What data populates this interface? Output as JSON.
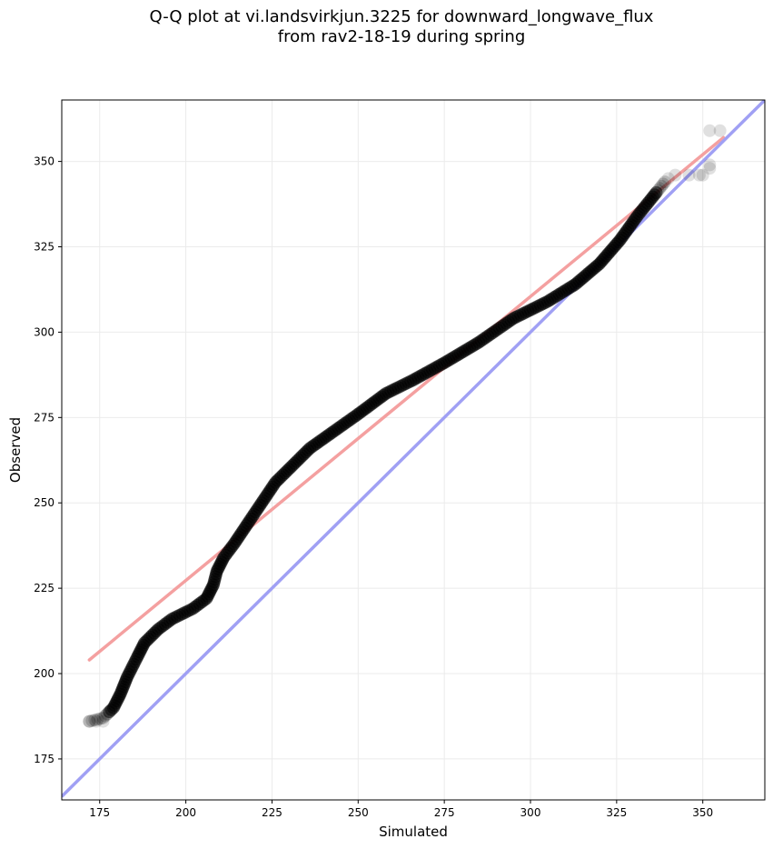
{
  "chart_data": {
    "type": "scatter",
    "title_line1": "Q-Q plot at vi.landsvirkjun.3225 for downward_longwave_flux",
    "title_line2": "from rav2-18-19 during spring",
    "xlabel": "Simulated",
    "ylabel": "Observed",
    "xlim": [
      164,
      368
    ],
    "ylim": [
      163,
      368
    ],
    "xticks": [
      175,
      200,
      225,
      250,
      275,
      300,
      325,
      350
    ],
    "yticks": [
      175,
      200,
      225,
      250,
      275,
      300,
      325,
      350
    ],
    "grid": true,
    "fit_line": {
      "color": "#f4a0a0",
      "x": [
        172,
        356
      ],
      "y": [
        204,
        357
      ]
    },
    "identity_line": {
      "color": "#a0a0f4",
      "x": [
        164,
        368
      ],
      "y": [
        164,
        368
      ]
    },
    "quantile_curve_anchors": [
      [
        172,
        186
      ],
      [
        176,
        187
      ],
      [
        179,
        190
      ],
      [
        181,
        194
      ],
      [
        183,
        199
      ],
      [
        186,
        205
      ],
      [
        188,
        209
      ],
      [
        192,
        213
      ],
      [
        196,
        216
      ],
      [
        202,
        219
      ],
      [
        206,
        222
      ],
      [
        208,
        226
      ],
      [
        209,
        230
      ],
      [
        211,
        234
      ],
      [
        214,
        238
      ],
      [
        218,
        244
      ],
      [
        222,
        250
      ],
      [
        226,
        256
      ],
      [
        231,
        261
      ],
      [
        236,
        266
      ],
      [
        243,
        271
      ],
      [
        250,
        276
      ],
      [
        258,
        282
      ],
      [
        266,
        286
      ],
      [
        275,
        291
      ],
      [
        285,
        297
      ],
      [
        295,
        304
      ],
      [
        305,
        309
      ],
      [
        313,
        314
      ],
      [
        320,
        320
      ],
      [
        326,
        327
      ],
      [
        331,
        334
      ],
      [
        335,
        339
      ],
      [
        339,
        344
      ]
    ],
    "outliers": [
      [
        172,
        186
      ],
      [
        174,
        186
      ],
      [
        176,
        186
      ],
      [
        177,
        188
      ],
      [
        340,
        345
      ],
      [
        342,
        346
      ],
      [
        346,
        346
      ],
      [
        349,
        346
      ],
      [
        350,
        346
      ],
      [
        352,
        348
      ],
      [
        352,
        349
      ],
      [
        352,
        359
      ],
      [
        355,
        359
      ]
    ],
    "point_color": "#000000"
  }
}
